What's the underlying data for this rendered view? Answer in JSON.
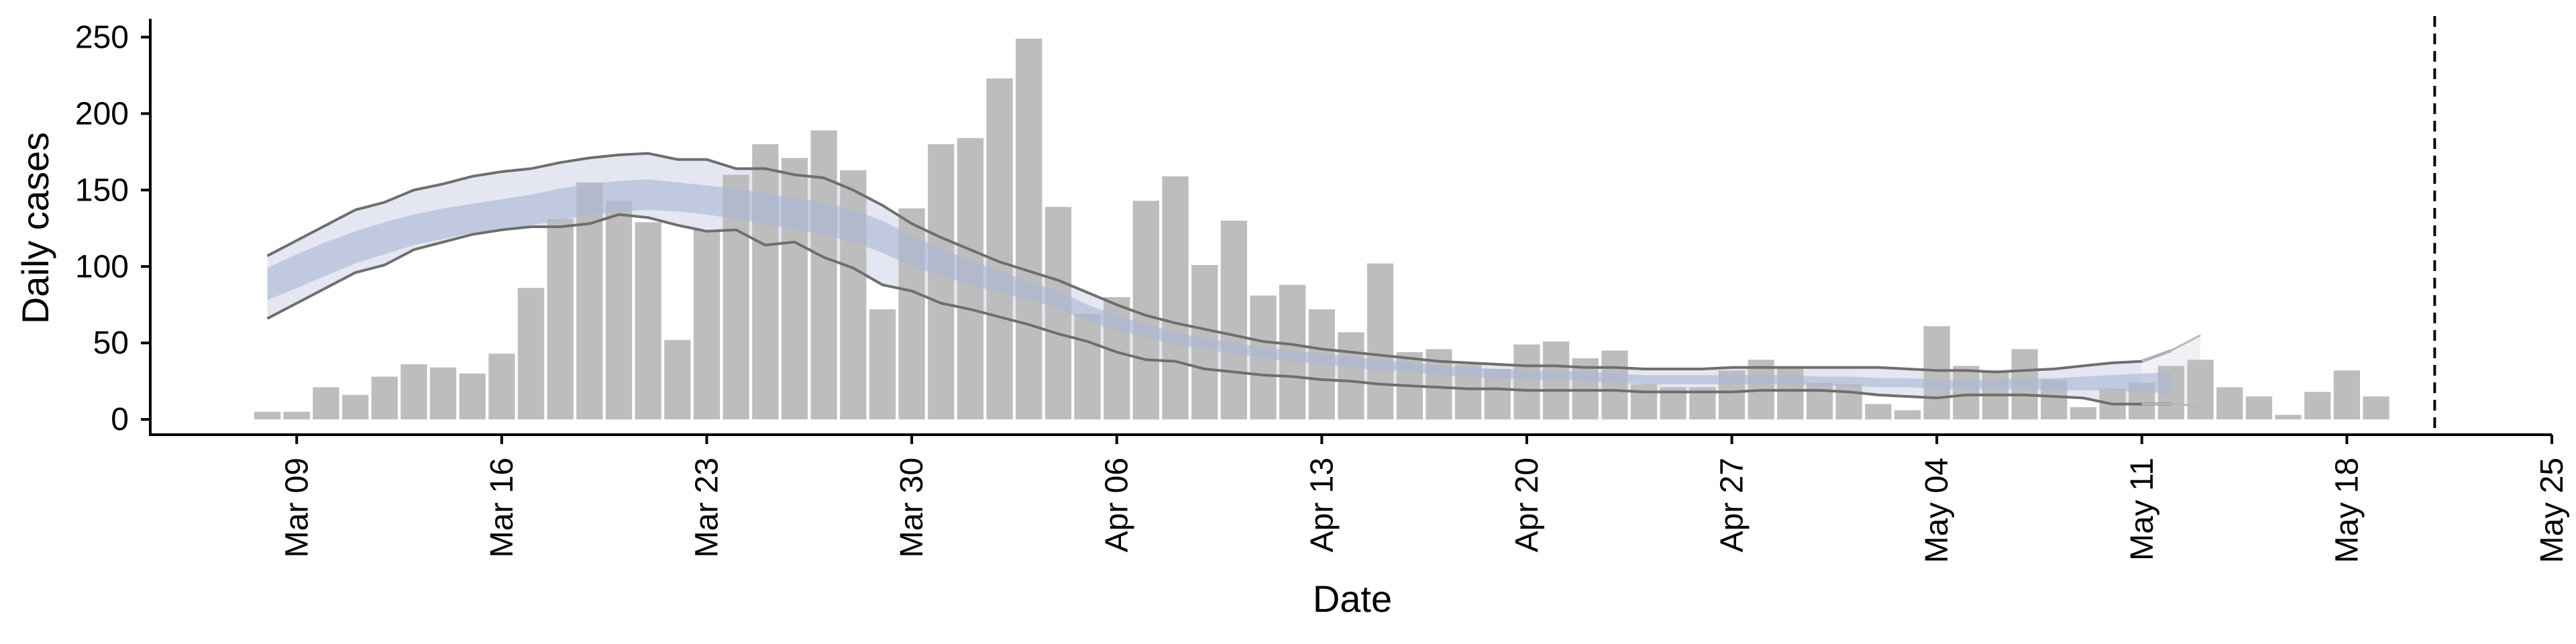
{
  "chart_data": {
    "type": "bar",
    "xlabel": "Date",
    "ylabel": "Daily cases",
    "ylim": [
      -10,
      262
    ],
    "yticks": [
      0,
      50,
      100,
      150,
      200,
      250
    ],
    "xlim": [
      "2020-03-04",
      "2020-05-25"
    ],
    "xticks": [
      "2020-03-09",
      "2020-03-16",
      "2020-03-23",
      "2020-03-30",
      "2020-04-06",
      "2020-04-13",
      "2020-04-20",
      "2020-04-27",
      "2020-05-04",
      "2020-05-11",
      "2020-05-18",
      "2020-05-25"
    ],
    "xtick_labels": [
      "Mar 09",
      "Mar 16",
      "Mar 23",
      "Mar 30",
      "Apr 06",
      "Apr 13",
      "Apr 20",
      "Apr 27",
      "May 04",
      "May 11",
      "May 18",
      "May 25"
    ],
    "bars": {
      "start_date": "2020-03-08",
      "color": "#bdbdbd",
      "values": [
        5,
        5,
        21,
        16,
        28,
        36,
        34,
        30,
        43,
        86,
        131,
        155,
        143,
        129,
        52,
        124,
        160,
        180,
        171,
        189,
        163,
        72,
        138,
        180,
        184,
        223,
        249,
        139,
        69,
        80,
        143,
        159,
        101,
        130,
        81,
        88,
        72,
        57,
        102,
        44,
        46,
        36,
        33,
        49,
        51,
        40,
        45,
        23,
        21,
        21,
        32,
        39,
        34,
        24,
        23,
        10,
        6,
        61,
        35,
        32,
        46,
        26,
        8,
        20,
        24,
        35,
        39,
        21,
        15,
        3,
        18,
        32,
        15
      ]
    },
    "band_start_date": "2020-03-08",
    "median_band": {
      "color": "#aab6d6",
      "lower": [
        78,
        86,
        94,
        102,
        108,
        114,
        118,
        122,
        124,
        127,
        130,
        134,
        136,
        137,
        136,
        134,
        131,
        128,
        124,
        121,
        116,
        109,
        100,
        94,
        88,
        83,
        78,
        73,
        64,
        58,
        54,
        49,
        46,
        43,
        40,
        38,
        36,
        34,
        32,
        31,
        29,
        28,
        27,
        26,
        26,
        25,
        24,
        23,
        23,
        23,
        23,
        23,
        23,
        22,
        22,
        21,
        21,
        20,
        20,
        20,
        20,
        19,
        19,
        19,
        18,
        17
      ],
      "upper": [
        99,
        108,
        116,
        123,
        129,
        134,
        138,
        141,
        144,
        147,
        151,
        154,
        156,
        157,
        155,
        153,
        151,
        148,
        145,
        142,
        137,
        130,
        120,
        112,
        104,
        97,
        90,
        84,
        75,
        68,
        62,
        57,
        53,
        50,
        47,
        45,
        43,
        41,
        39,
        37,
        35,
        34,
        33,
        32,
        32,
        31,
        30,
        29,
        29,
        29,
        29,
        29,
        29,
        28,
        28,
        27,
        27,
        26,
        26,
        26,
        27,
        27,
        28,
        29,
        30,
        31
      ]
    },
    "outer_band": {
      "color": "#e4e7f1",
      "lower": [
        66,
        76,
        86,
        96,
        101,
        111,
        116,
        121,
        124,
        126,
        126,
        128,
        134,
        132,
        127,
        123,
        124,
        114,
        116,
        106,
        99,
        88,
        84,
        76,
        72,
        67,
        62,
        56,
        51,
        44,
        39,
        38,
        33,
        31,
        29,
        28,
        26,
        25,
        23,
        22,
        21,
        20,
        20,
        19,
        19,
        19,
        19,
        18,
        18,
        18,
        18,
        19,
        19,
        19,
        18,
        16,
        15,
        14,
        16,
        16,
        16,
        15,
        14,
        10,
        10,
        10
      ],
      "upper": [
        107,
        117,
        127,
        137,
        142,
        150,
        154,
        159,
        162,
        164,
        168,
        171,
        173,
        174,
        170,
        170,
        164,
        164,
        160,
        158,
        150,
        140,
        128,
        119,
        111,
        103,
        97,
        91,
        83,
        75,
        68,
        63,
        59,
        55,
        51,
        49,
        46,
        44,
        42,
        40,
        38,
        37,
        36,
        35,
        35,
        34,
        34,
        33,
        33,
        33,
        34,
        34,
        34,
        34,
        34,
        34,
        33,
        32,
        32,
        31,
        32,
        33,
        35,
        37,
        38,
        45
      ]
    },
    "forecast_band": {
      "color": "#f0f1f6",
      "start_date": "2020-05-11",
      "lower": [
        10,
        10,
        9
      ],
      "upper": [
        38,
        45,
        55
      ]
    },
    "vline_date": "2020-05-21",
    "vline_style": "dashed",
    "grid": false,
    "legend": "none"
  }
}
